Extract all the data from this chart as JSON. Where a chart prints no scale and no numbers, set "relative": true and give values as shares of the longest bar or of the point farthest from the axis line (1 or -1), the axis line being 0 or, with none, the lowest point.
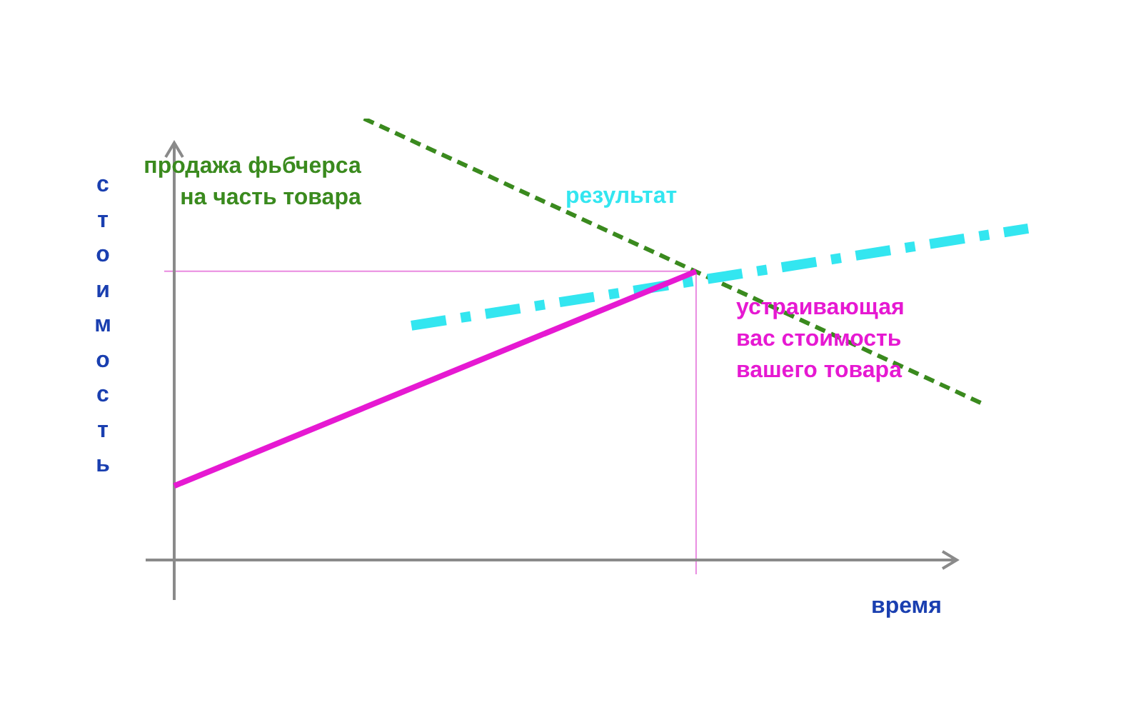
{
  "chart_data": {
    "type": "line",
    "relative": true,
    "xlabel": "время",
    "ylabel": "стоимость",
    "legend": false,
    "categories": [
      null,
      null,
      null,
      null,
      null,
      null,
      null,
      null,
      null,
      null,
      null,
      null,
      null,
      null,
      null,
      null,
      null,
      null,
      null,
      null,
      null,
      null,
      null,
      null,
      null,
      null,
      null,
      null,
      null,
      null,
      null,
      null,
      null,
      null,
      null,
      null,
      null
    ],
    "series": [
      {
        "name": "устраивающая вас стоимость вашего товара",
        "color": "#e619d2",
        "values": [
          0.168,
          null,
          null,
          null,
          null,
          null,
          null,
          null,
          null,
          null,
          null,
          null,
          null,
          null,
          null,
          null,
          null,
          null,
          null,
          null,
          null,
          null,
          0.654,
          null,
          null,
          null,
          null,
          null,
          null,
          null,
          null,
          null,
          null,
          null,
          null,
          null,
          null
        ],
        "line_style": "solid"
      },
      {
        "name": "результат",
        "color": "#33e6f0",
        "values": [
          null,
          null,
          null,
          null,
          null,
          null,
          null,
          null,
          null,
          null,
          0.531,
          null,
          null,
          null,
          null,
          null,
          null,
          null,
          null,
          null,
          null,
          null,
          null,
          null,
          null,
          null,
          null,
          null,
          null,
          null,
          null,
          null,
          null,
          null,
          null,
          null,
          0.751
        ],
        "line_style": "dashed"
      },
      {
        "name": "продажа фьбчерса на часть товара",
        "color": "#3a8a1e",
        "values": [
          null,
          null,
          null,
          null,
          null,
          null,
          null,
          null,
          1,
          null,
          null,
          null,
          null,
          null,
          null,
          null,
          null,
          null,
          null,
          null,
          null,
          null,
          null,
          null,
          null,
          null,
          null,
          null,
          null,
          null,
          null,
          null,
          null,
          null,
          0.356,
          null,
          null
        ],
        "line_style": "dashed"
      }
    ],
    "ref_lines": [
      {
        "axis": "y",
        "value": 0.654,
        "color": "#e98ae0"
      }
    ]
  }
}
